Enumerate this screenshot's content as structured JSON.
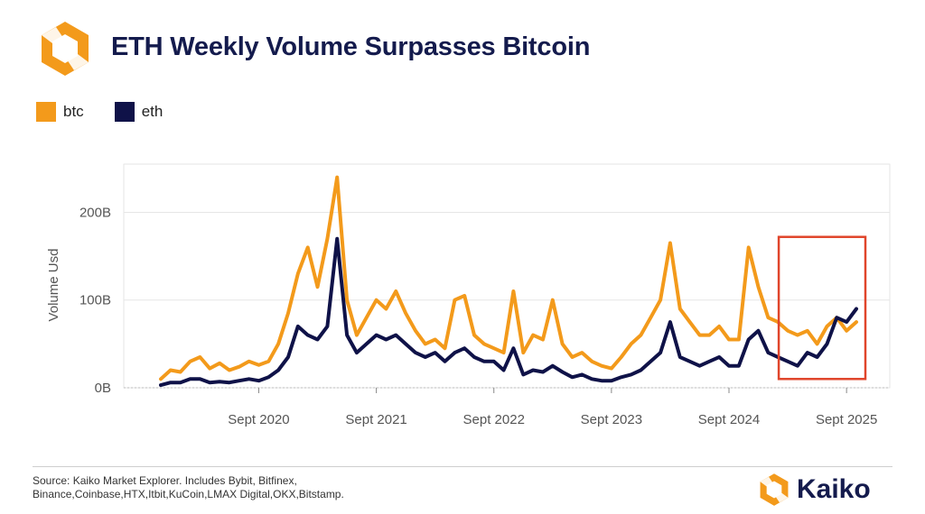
{
  "header": {
    "title": "ETH Weekly Volume Surpasses Bitcoin",
    "logo_icon": "kaiko-logo-icon"
  },
  "colors": {
    "btc": "#f39a1b",
    "eth": "#0f1248",
    "highlight": "#e0452b",
    "grid": "#e6e6e6",
    "axis": "#888888"
  },
  "chart_data": {
    "type": "line",
    "title": "ETH Weekly Volume Surpasses Bitcoin",
    "xlabel": "",
    "ylabel": "Volume Usd",
    "x_ticks": [
      "Sept 2020",
      "Sept 2021",
      "Sept 2022",
      "Sept 2023",
      "Sept 2024",
      "Sept 2025"
    ],
    "y_ticks": [
      "0B",
      "100B",
      "200B"
    ],
    "ylim": [
      0,
      255
    ],
    "x_unit": "date",
    "xlim": [
      "2019-11",
      "2025-10"
    ],
    "legend": "top-left",
    "grid": "horizontal",
    "annotation": {
      "type": "highlight-box",
      "x_range": [
        "2025-03",
        "2025-10"
      ],
      "y_range": [
        10,
        172
      ]
    },
    "series": [
      {
        "name": "btc",
        "points": [
          [
            "2019-11",
            10
          ],
          [
            "2019-12",
            20
          ],
          [
            "2020-01",
            18
          ],
          [
            "2020-02",
            30
          ],
          [
            "2020-03",
            35
          ],
          [
            "2020-04",
            22
          ],
          [
            "2020-05",
            28
          ],
          [
            "2020-06",
            20
          ],
          [
            "2020-07",
            24
          ],
          [
            "2020-08",
            30
          ],
          [
            "2020-09",
            26
          ],
          [
            "2020-10",
            30
          ],
          [
            "2020-11",
            50
          ],
          [
            "2020-12",
            85
          ],
          [
            "2021-01",
            130
          ],
          [
            "2021-02",
            160
          ],
          [
            "2021-03",
            115
          ],
          [
            "2021-04",
            170
          ],
          [
            "2021-05",
            240
          ],
          [
            "2021-06",
            100
          ],
          [
            "2021-07",
            60
          ],
          [
            "2021-08",
            80
          ],
          [
            "2021-09",
            100
          ],
          [
            "2021-10",
            90
          ],
          [
            "2021-11",
            110
          ],
          [
            "2021-12",
            85
          ],
          [
            "2022-01",
            65
          ],
          [
            "2022-02",
            50
          ],
          [
            "2022-03",
            55
          ],
          [
            "2022-04",
            45
          ],
          [
            "2022-05",
            100
          ],
          [
            "2022-06",
            105
          ],
          [
            "2022-07",
            60
          ],
          [
            "2022-08",
            50
          ],
          [
            "2022-09",
            45
          ],
          [
            "2022-10",
            40
          ],
          [
            "2022-11",
            110
          ],
          [
            "2022-12",
            40
          ],
          [
            "2023-01",
            60
          ],
          [
            "2023-02",
            55
          ],
          [
            "2023-03",
            100
          ],
          [
            "2023-04",
            50
          ],
          [
            "2023-05",
            35
          ],
          [
            "2023-06",
            40
          ],
          [
            "2023-07",
            30
          ],
          [
            "2023-08",
            25
          ],
          [
            "2023-09",
            22
          ],
          [
            "2023-10",
            35
          ],
          [
            "2023-11",
            50
          ],
          [
            "2023-12",
            60
          ],
          [
            "2024-01",
            80
          ],
          [
            "2024-02",
            100
          ],
          [
            "2024-03",
            165
          ],
          [
            "2024-04",
            90
          ],
          [
            "2024-05",
            75
          ],
          [
            "2024-06",
            60
          ],
          [
            "2024-07",
            60
          ],
          [
            "2024-08",
            70
          ],
          [
            "2024-09",
            55
          ],
          [
            "2024-10",
            55
          ],
          [
            "2024-11",
            160
          ],
          [
            "2024-12",
            115
          ],
          [
            "2025-01",
            80
          ],
          [
            "2025-02",
            75
          ],
          [
            "2025-03",
            65
          ],
          [
            "2025-04",
            60
          ],
          [
            "2025-05",
            65
          ],
          [
            "2025-06",
            50
          ],
          [
            "2025-07",
            70
          ],
          [
            "2025-08",
            80
          ],
          [
            "2025-09",
            65
          ],
          [
            "2025-10",
            75
          ]
        ]
      },
      {
        "name": "eth",
        "points": [
          [
            "2019-11",
            3
          ],
          [
            "2019-12",
            6
          ],
          [
            "2020-01",
            6
          ],
          [
            "2020-02",
            10
          ],
          [
            "2020-03",
            10
          ],
          [
            "2020-04",
            6
          ],
          [
            "2020-05",
            7
          ],
          [
            "2020-06",
            6
          ],
          [
            "2020-07",
            8
          ],
          [
            "2020-08",
            10
          ],
          [
            "2020-09",
            8
          ],
          [
            "2020-10",
            12
          ],
          [
            "2020-11",
            20
          ],
          [
            "2020-12",
            35
          ],
          [
            "2021-01",
            70
          ],
          [
            "2021-02",
            60
          ],
          [
            "2021-03",
            55
          ],
          [
            "2021-04",
            70
          ],
          [
            "2021-05",
            170
          ],
          [
            "2021-06",
            60
          ],
          [
            "2021-07",
            40
          ],
          [
            "2021-08",
            50
          ],
          [
            "2021-09",
            60
          ],
          [
            "2021-10",
            55
          ],
          [
            "2021-11",
            60
          ],
          [
            "2021-12",
            50
          ],
          [
            "2022-01",
            40
          ],
          [
            "2022-02",
            35
          ],
          [
            "2022-03",
            40
          ],
          [
            "2022-04",
            30
          ],
          [
            "2022-05",
            40
          ],
          [
            "2022-06",
            45
          ],
          [
            "2022-07",
            35
          ],
          [
            "2022-08",
            30
          ],
          [
            "2022-09",
            30
          ],
          [
            "2022-10",
            20
          ],
          [
            "2022-11",
            45
          ],
          [
            "2022-12",
            15
          ],
          [
            "2023-01",
            20
          ],
          [
            "2023-02",
            18
          ],
          [
            "2023-03",
            25
          ],
          [
            "2023-04",
            18
          ],
          [
            "2023-05",
            12
          ],
          [
            "2023-06",
            15
          ],
          [
            "2023-07",
            10
          ],
          [
            "2023-08",
            8
          ],
          [
            "2023-09",
            8
          ],
          [
            "2023-10",
            12
          ],
          [
            "2023-11",
            15
          ],
          [
            "2023-12",
            20
          ],
          [
            "2024-01",
            30
          ],
          [
            "2024-02",
            40
          ],
          [
            "2024-03",
            75
          ],
          [
            "2024-04",
            35
          ],
          [
            "2024-05",
            30
          ],
          [
            "2024-06",
            25
          ],
          [
            "2024-07",
            30
          ],
          [
            "2024-08",
            35
          ],
          [
            "2024-09",
            25
          ],
          [
            "2024-10",
            25
          ],
          [
            "2024-11",
            55
          ],
          [
            "2024-12",
            65
          ],
          [
            "2025-01",
            40
          ],
          [
            "2025-02",
            35
          ],
          [
            "2025-03",
            30
          ],
          [
            "2025-04",
            25
          ],
          [
            "2025-05",
            40
          ],
          [
            "2025-06",
            35
          ],
          [
            "2025-07",
            50
          ],
          [
            "2025-08",
            80
          ],
          [
            "2025-09",
            75
          ],
          [
            "2025-10",
            90
          ]
        ]
      }
    ]
  },
  "footer": {
    "source_line1": "Source: Kaiko Market Explorer. Includes Bybit, Bitfinex,",
    "source_line2": "Binance,Coinbase,HTX,Itbit,KuCoin,LMAX Digital,OKX,Bitstamp.",
    "brand_name": "Kaiko",
    "brand_icon": "kaiko-logo-icon"
  }
}
